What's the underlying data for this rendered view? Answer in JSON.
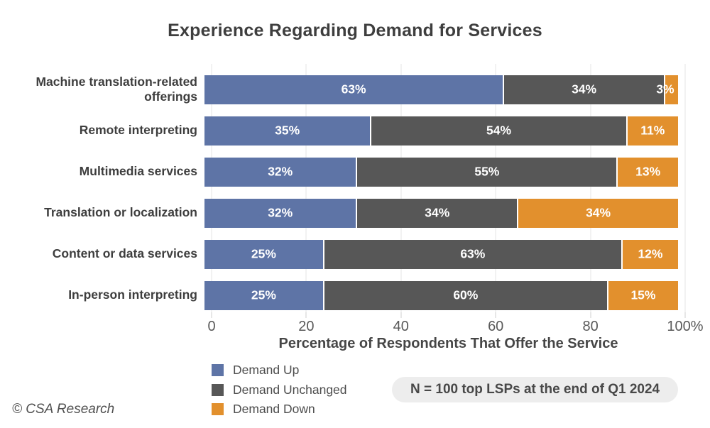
{
  "chart_data": {
    "type": "bar",
    "orientation": "horizontal",
    "stacked": true,
    "title": "Experience Regarding Demand for Services",
    "categories": [
      "Machine translation-related offerings",
      "Remote interpreting",
      "Multimedia services",
      "Translation or localization",
      "Content or data services",
      "In-person interpreting"
    ],
    "series": [
      {
        "name": "Demand Up",
        "color": "#5e74a6",
        "values": [
          63,
          35,
          32,
          32,
          25,
          25
        ]
      },
      {
        "name": "Demand Unchanged",
        "color": "#575757",
        "values": [
          34,
          54,
          55,
          34,
          63,
          60
        ]
      },
      {
        "name": "Demand Down",
        "color": "#e2902d",
        "values": [
          3,
          11,
          13,
          34,
          12,
          15
        ]
      }
    ],
    "value_suffix": "%",
    "xlabel": "Percentage of Respondents That Offer the Service",
    "xlim": [
      0,
      100
    ],
    "x_tick_values": [
      0,
      20,
      40,
      60,
      80,
      100
    ],
    "x_tick_labels": [
      "0",
      "20",
      "40",
      "60",
      "80",
      "100%"
    ],
    "grid": "vertical",
    "legend_position": "bottom-left"
  },
  "annotations": {
    "sample_note": "N = 100 top LSPs at the end of Q1 2024",
    "credit": "© CSA Research"
  },
  "colors": {
    "demand_up": "#5e74a6",
    "demand_unchanged": "#575757",
    "demand_down": "#e2902d",
    "title_text": "#3e3e3e",
    "axis_text": "#595959",
    "gridline": "#e4e4e4",
    "note_pill_bg": "#ededed",
    "bar_value_text": "#ffffff"
  }
}
